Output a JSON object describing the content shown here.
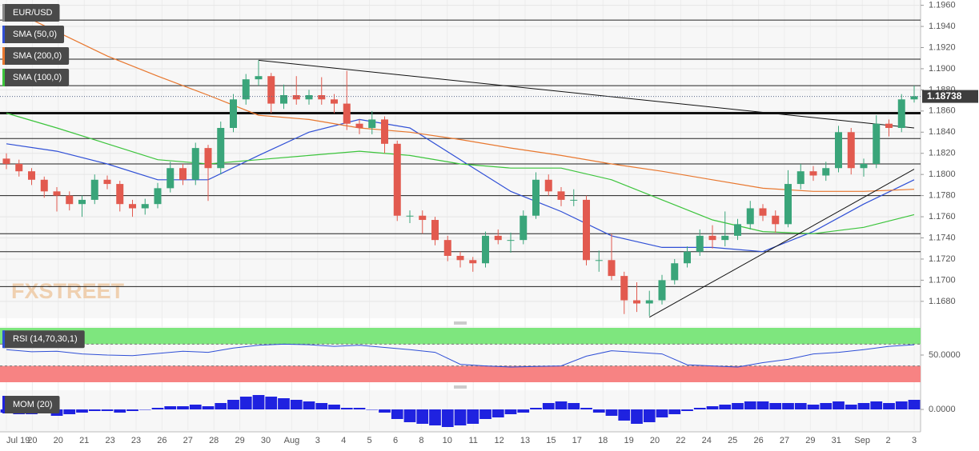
{
  "chart_data": [
    {
      "type": "candlestick",
      "symbol": "EUR/USD",
      "watermark": "FXSTREET",
      "up_color": "#3aa57a",
      "down_color": "#e25a4f",
      "open": [
        1.1815,
        1.181,
        1.1803,
        1.1795,
        1.1784,
        1.178,
        1.1772,
        1.1776,
        1.1795,
        1.1791,
        1.1772,
        1.1768,
        1.1772,
        1.1787,
        1.1806,
        1.1795,
        1.1825,
        1.1806,
        1.1844,
        1.1871,
        1.189,
        1.1893,
        1.1867,
        1.1875,
        1.1871,
        1.1875,
        1.1871,
        1.1867,
        1.1848,
        1.1844,
        1.1852,
        1.1829,
        1.1761,
        1.1761,
        1.1757,
        1.1738,
        1.1723,
        1.1719,
        1.1716,
        1.1742,
        1.1738,
        1.1738,
        1.1761,
        1.1795,
        1.1784,
        1.1776,
        1.1776,
        1.1719,
        1.1719,
        1.1704,
        1.1681,
        1.1678,
        1.1681,
        1.17,
        1.1716,
        1.1727,
        1.1742,
        1.1738,
        1.1742,
        1.1753,
        1.1768,
        1.1761,
        1.1753,
        1.1791,
        1.1803,
        1.1799,
        1.1806,
        1.184,
        1.1806,
        1.181,
        1.1848,
        1.1844,
        1.1871
      ],
      "high": [
        1.182,
        1.1814,
        1.1806,
        1.1798,
        1.1788,
        1.1784,
        1.178,
        1.18,
        1.1799,
        1.1794,
        1.1776,
        1.1777,
        1.1792,
        1.1812,
        1.181,
        1.183,
        1.1828,
        1.185,
        1.1876,
        1.1895,
        1.1908,
        1.1896,
        1.1885,
        1.1893,
        1.188,
        1.1892,
        1.1876,
        1.1898,
        1.1852,
        1.186,
        1.1855,
        1.1832,
        1.1766,
        1.1766,
        1.176,
        1.1742,
        1.1727,
        1.1722,
        1.1746,
        1.1748,
        1.1745,
        1.1766,
        1.1802,
        1.18,
        1.1788,
        1.1786,
        1.178,
        1.1728,
        1.1744,
        1.1708,
        1.1698,
        1.169,
        1.1705,
        1.172,
        1.1732,
        1.1748,
        1.1752,
        1.1765,
        1.1758,
        1.1775,
        1.1772,
        1.1766,
        1.1804,
        1.181,
        1.1808,
        1.1812,
        1.1846,
        1.1844,
        1.1815,
        1.1856,
        1.1852,
        1.1876,
        1.1884
      ],
      "low": [
        1.1805,
        1.1798,
        1.179,
        1.1778,
        1.1765,
        1.1766,
        1.176,
        1.1772,
        1.1786,
        1.1765,
        1.176,
        1.1762,
        1.1768,
        1.1783,
        1.179,
        1.179,
        1.1775,
        1.18,
        1.184,
        1.1866,
        1.1884,
        1.1858,
        1.1862,
        1.1866,
        1.1866,
        1.1866,
        1.1858,
        1.1842,
        1.1838,
        1.1838,
        1.182,
        1.1756,
        1.1754,
        1.1744,
        1.1733,
        1.1718,
        1.1712,
        1.1708,
        1.1712,
        1.1734,
        1.1726,
        1.1734,
        1.1758,
        1.178,
        1.177,
        1.177,
        1.1714,
        1.1708,
        1.17,
        1.1668,
        1.167,
        1.1666,
        1.1677,
        1.1696,
        1.1712,
        1.1723,
        1.173,
        1.1732,
        1.1738,
        1.1748,
        1.1756,
        1.1745,
        1.175,
        1.1786,
        1.1794,
        1.1794,
        1.1802,
        1.18,
        1.1798,
        1.1806,
        1.1836,
        1.184,
        1.1868
      ],
      "close": [
        1.181,
        1.1803,
        1.1795,
        1.1784,
        1.178,
        1.1772,
        1.1776,
        1.1795,
        1.1791,
        1.1772,
        1.1768,
        1.1772,
        1.1787,
        1.1806,
        1.1795,
        1.1825,
        1.1806,
        1.1844,
        1.1871,
        1.189,
        1.1893,
        1.1867,
        1.1875,
        1.1871,
        1.1875,
        1.1871,
        1.1867,
        1.1848,
        1.1844,
        1.1852,
        1.1829,
        1.1761,
        1.1761,
        1.1757,
        1.1738,
        1.1723,
        1.1719,
        1.1716,
        1.1742,
        1.1738,
        1.1738,
        1.1761,
        1.1795,
        1.1784,
        1.1776,
        1.1776,
        1.1719,
        1.1719,
        1.1704,
        1.1681,
        1.1678,
        1.1681,
        1.17,
        1.1716,
        1.1727,
        1.1742,
        1.1738,
        1.1742,
        1.1753,
        1.1768,
        1.1761,
        1.1753,
        1.1791,
        1.1803,
        1.1799,
        1.1806,
        1.184,
        1.1806,
        1.181,
        1.1848,
        1.1844,
        1.1871,
        1.1874
      ],
      "series": [
        {
          "name": "SMA (50,0)",
          "color": "#2f4fd6",
          "values": [
            1.1829,
            1.1822,
            1.181,
            1.1795,
            1.1795,
            1.1818,
            1.184,
            1.1852,
            1.1844,
            1.1814,
            1.1784,
            1.1765,
            1.1742,
            1.1731,
            1.1731,
            1.1727,
            1.1746,
            1.1772,
            1.1795
          ]
        },
        {
          "name": "SMA (200,0)",
          "color": "#e8772e",
          "values": [
            1.1958,
            1.1935,
            1.1912,
            1.1893,
            1.1875,
            1.1856,
            1.1852,
            1.1844,
            1.184,
            1.1833,
            1.1825,
            1.1818,
            1.181,
            1.1803,
            1.1795,
            1.1787,
            1.1784,
            1.1784,
            1.1786
          ]
        },
        {
          "name": "SMA (100,0)",
          "color": "#3cc43c",
          "values": [
            1.1858,
            1.1844,
            1.1829,
            1.1814,
            1.181,
            1.1814,
            1.1818,
            1.1822,
            1.1818,
            1.181,
            1.1806,
            1.1806,
            1.1795,
            1.1776,
            1.1757,
            1.1746,
            1.1744,
            1.175,
            1.1762
          ]
        }
      ],
      "levels": [
        1.1946,
        1.1909,
        1.1884,
        1.1834,
        1.181,
        1.178,
        1.1744,
        1.1727,
        1.1694
      ],
      "key_level": 1.1858,
      "trendlines": [
        {
          "x": [
            20,
            72
          ],
          "y": [
            1.1908,
            1.1844
          ]
        },
        {
          "x": [
            51,
            72
          ],
          "y": [
            1.1665,
            1.1805
          ]
        }
      ],
      "last_price": 1.18738,
      "ylim": [
        1.1664,
        1.1965
      ],
      "yticks": [
        {
          "value": 1.168,
          "label": "1.1680"
        },
        {
          "value": 1.17,
          "label": "1.1700"
        },
        {
          "value": 1.172,
          "label": "1.1720"
        },
        {
          "value": 1.174,
          "label": "1.1740"
        },
        {
          "value": 1.176,
          "label": "1.1760"
        },
        {
          "value": 1.178,
          "label": "1.1780"
        },
        {
          "value": 1.18,
          "label": "1.1800"
        },
        {
          "value": 1.182,
          "label": "1.1820"
        },
        {
          "value": 1.184,
          "label": "1.1840"
        },
        {
          "value": 1.186,
          "label": "1.1860"
        },
        {
          "value": 1.188,
          "label": "1.1880"
        },
        {
          "value": 1.19,
          "label": "1.1900"
        },
        {
          "value": 1.192,
          "label": "1.1920"
        },
        {
          "value": 1.194,
          "label": "1.1940"
        },
        {
          "value": 1.196,
          "label": "1.1960"
        }
      ],
      "x_labels": [
        "Jul 19",
        "20",
        "20",
        "21",
        "23",
        "23",
        "26",
        "27",
        "28",
        "29",
        "30",
        "Aug",
        "3",
        "4",
        "5",
        "6",
        "8",
        "10",
        "11",
        "12",
        "13",
        "15",
        "17",
        "18",
        "19",
        "20",
        "22",
        "24",
        "25",
        "26",
        "27",
        "29",
        "31",
        "Sep",
        "2",
        "3"
      ],
      "grid": true
    },
    {
      "type": "line",
      "name": "RSI (14,70,30,1)",
      "color": "#2f4fd6",
      "values": [
        60,
        56,
        57,
        52,
        50,
        49,
        53,
        57,
        55,
        63,
        68,
        70,
        69,
        66,
        68,
        64,
        60,
        55,
        33,
        30,
        28,
        29,
        30,
        48,
        58,
        55,
        52,
        32,
        30,
        28,
        36,
        42,
        52,
        55,
        60,
        66,
        69
      ],
      "bands": [
        70,
        30
      ],
      "ylim": [
        0,
        100
      ],
      "yticks": [
        {
          "value": 50,
          "label": "50.0000"
        }
      ]
    },
    {
      "type": "bar",
      "name": "MOM (20)",
      "color": "#1f22e0",
      "values": [
        -0.002,
        -0.003,
        -0.003,
        -0.002,
        -0.004,
        -0.003,
        -0.002,
        -0.001,
        -0.001,
        -0.002,
        -0.001,
        0,
        0.001,
        0.002,
        0.002,
        0.003,
        0.002,
        0.004,
        0.006,
        0.008,
        0.009,
        0.008,
        0.007,
        0.006,
        0.005,
        0.004,
        0.003,
        0.001,
        0.001,
        0,
        -0.002,
        -0.006,
        -0.008,
        -0.009,
        -0.01,
        -0.011,
        -0.01,
        -0.009,
        -0.006,
        -0.005,
        -0.003,
        -0.002,
        0.001,
        0.004,
        0.005,
        0.004,
        0.001,
        -0.002,
        -0.004,
        -0.007,
        -0.009,
        -0.008,
        -0.005,
        -0.003,
        -0.001,
        0.001,
        0.002,
        0.003,
        0.004,
        0.005,
        0.005,
        0.004,
        0.004,
        0.004,
        0.003,
        0.004,
        0.005,
        0.003,
        0.004,
        0.005,
        0.004,
        0.005,
        0.006
      ],
      "ylim": [
        -0.013,
        0.011
      ],
      "yticks": [
        {
          "value": 0,
          "label": "0.0000"
        }
      ]
    }
  ]
}
